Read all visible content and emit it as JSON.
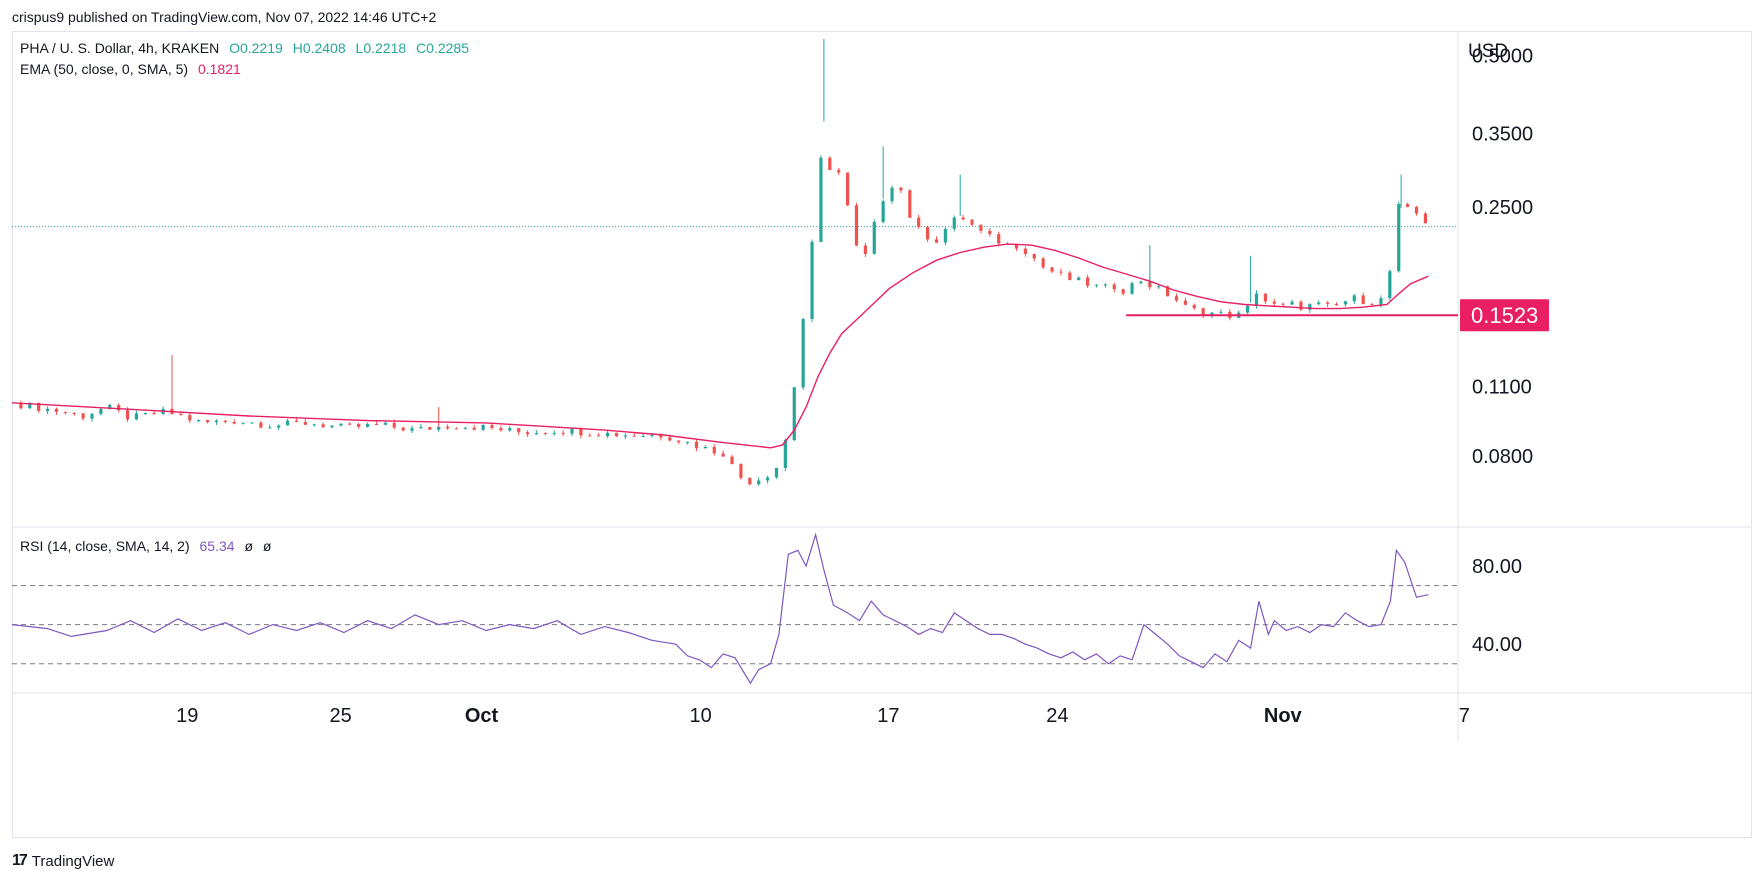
{
  "header": {
    "publisher_line": "crispus9 published on TradingView.com, Nov 07, 2022 14:46 UTC+2"
  },
  "legend": {
    "symbol": "PHA / U. S. Dollar, 4h, KRAKEN",
    "open_label": "O",
    "open": "0.2219",
    "high_label": "H",
    "high": "0.2408",
    "low_label": "L",
    "low": "0.2218",
    "close_label": "C",
    "close": "0.2285",
    "ema_label": "EMA (50, close, 0, SMA, 5)",
    "ema_value": "0.1821",
    "rsi_label": "RSI (14, close, SMA, 14, 2)",
    "rsi_value": "65.34",
    "rsi_extra1": "ø",
    "rsi_extra2": "ø"
  },
  "footer": {
    "brand": "TradingView",
    "logo_glyph": "17"
  },
  "colors": {
    "up": "#26a69a",
    "down": "#ef5350",
    "ema": "#e91e63",
    "support": "#e91e63",
    "rsi": "#7e57c2",
    "price_line": "#26a69a"
  },
  "chart_data": [
    {
      "type": "candlestick",
      "currency_label": "USD",
      "y_scale": "log",
      "ylim": [
        0.058,
        0.56
      ],
      "y_ticks": [
        0.08,
        0.11,
        0.25,
        0.35,
        0.5
      ],
      "y_tick_labels": [
        "0.0800",
        "0.1100",
        "0.2500",
        "0.3500",
        "0.5000"
      ],
      "x_ticks": [
        "19",
        "25",
        "Oct",
        "10",
        "17",
        "24",
        "Nov",
        "7"
      ],
      "current_price_line": 0.2285,
      "support_level": {
        "value": 0.1523,
        "label": "0.1523"
      },
      "price_path": [
        [
          0,
          0.102
        ],
        [
          4,
          0.098
        ],
        [
          6,
          0.096
        ],
        [
          8,
          0.1
        ],
        [
          10,
          0.095
        ],
        [
          13,
          0.098
        ],
        [
          16,
          0.093
        ],
        [
          19,
          0.094
        ],
        [
          22,
          0.092
        ],
        [
          25,
          0.093
        ],
        [
          28,
          0.091
        ],
        [
          31,
          0.092
        ],
        [
          34,
          0.09
        ],
        [
          37,
          0.092
        ],
        [
          40,
          0.091
        ],
        [
          43,
          0.089
        ],
        [
          46,
          0.09
        ],
        [
          49,
          0.089
        ],
        [
          52,
          0.088
        ],
        [
          55,
          0.088
        ],
        [
          57,
          0.085
        ],
        [
          59,
          0.082
        ],
        [
          60,
          0.081
        ],
        [
          61.3,
          0.073
        ],
        [
          62,
          0.071
        ],
        [
          63,
          0.072
        ],
        [
          64,
          0.074
        ],
        [
          65,
          0.078
        ],
        [
          66,
          0.11
        ],
        [
          66.5,
          0.14
        ],
        [
          67,
          0.16
        ],
        [
          67.5,
          0.21
        ],
        [
          68,
          0.25
        ],
        [
          68.5,
          0.37
        ],
        [
          69,
          0.3
        ],
        [
          70,
          0.29
        ],
        [
          71,
          0.21
        ],
        [
          72,
          0.2
        ],
        [
          73,
          0.24
        ],
        [
          74,
          0.28
        ],
        [
          75,
          0.27
        ],
        [
          76,
          0.23
        ],
        [
          77,
          0.22
        ],
        [
          78,
          0.215
        ],
        [
          79,
          0.23
        ],
        [
          80,
          0.24
        ],
        [
          81,
          0.23
        ],
        [
          82,
          0.22
        ],
        [
          83,
          0.215
        ],
        [
          84,
          0.21
        ],
        [
          85,
          0.21
        ],
        [
          86,
          0.2
        ],
        [
          87,
          0.19
        ],
        [
          88,
          0.185
        ],
        [
          89,
          0.18
        ],
        [
          90,
          0.178
        ],
        [
          91,
          0.175
        ],
        [
          92,
          0.172
        ],
        [
          93,
          0.174
        ],
        [
          94,
          0.17
        ],
        [
          95,
          0.18
        ],
        [
          96,
          0.175
        ],
        [
          97,
          0.17
        ],
        [
          98,
          0.165
        ],
        [
          99,
          0.158
        ],
        [
          100,
          0.155
        ],
        [
          101,
          0.154
        ],
        [
          102,
          0.153
        ],
        [
          103,
          0.152
        ],
        [
          104,
          0.153
        ],
        [
          105,
          0.17
        ],
        [
          106,
          0.16
        ],
        [
          107,
          0.158
        ],
        [
          108,
          0.16
        ],
        [
          109,
          0.158
        ],
        [
          110,
          0.16
        ],
        [
          111,
          0.158
        ],
        [
          112,
          0.16
        ],
        [
          113,
          0.165
        ],
        [
          114,
          0.163
        ],
        [
          115,
          0.162
        ],
        [
          116,
          0.165
        ],
        [
          117,
          0.25
        ],
        [
          118,
          0.245
        ],
        [
          119,
          0.24
        ],
        [
          119.5,
          0.2285
        ]
      ],
      "ema_path": [
        [
          0,
          0.102
        ],
        [
          10,
          0.099
        ],
        [
          20,
          0.096
        ],
        [
          30,
          0.094
        ],
        [
          40,
          0.093
        ],
        [
          50,
          0.09
        ],
        [
          55,
          0.088
        ],
        [
          60,
          0.085
        ],
        [
          64,
          0.083
        ],
        [
          65,
          0.084
        ],
        [
          66,
          0.09
        ],
        [
          67,
          0.1
        ],
        [
          68,
          0.115
        ],
        [
          69,
          0.128
        ],
        [
          70,
          0.14
        ],
        [
          72,
          0.155
        ],
        [
          74,
          0.172
        ],
        [
          76,
          0.185
        ],
        [
          78,
          0.196
        ],
        [
          80,
          0.203
        ],
        [
          82,
          0.208
        ],
        [
          84,
          0.211
        ],
        [
          86,
          0.21
        ],
        [
          88,
          0.205
        ],
        [
          90,
          0.198
        ],
        [
          92,
          0.19
        ],
        [
          94,
          0.184
        ],
        [
          96,
          0.178
        ],
        [
          98,
          0.171
        ],
        [
          100,
          0.166
        ],
        [
          102,
          0.162
        ],
        [
          104,
          0.16
        ],
        [
          106,
          0.159
        ],
        [
          108,
          0.158
        ],
        [
          110,
          0.157
        ],
        [
          112,
          0.157
        ],
        [
          114,
          0.158
        ],
        [
          116,
          0.16
        ],
        [
          117,
          0.168
        ],
        [
          118,
          0.176
        ],
        [
          119.5,
          0.1821
        ]
      ],
      "spikes": [
        {
          "t": 13.5,
          "high": 0.127
        },
        {
          "t": 36,
          "high": 0.1
        },
        {
          "t": 68.5,
          "high": 0.54
        },
        {
          "t": 73.5,
          "high": 0.33
        },
        {
          "t": 80,
          "high": 0.29
        },
        {
          "t": 96,
          "high": 0.21
        },
        {
          "t": 104.5,
          "high": 0.2
        },
        {
          "t": 117.2,
          "high": 0.29
        }
      ]
    },
    {
      "type": "line",
      "name": "RSI",
      "ylim": [
        15,
        100
      ],
      "y_ticks": [
        40,
        80
      ],
      "y_tick_labels": [
        "40.00",
        "80.00"
      ],
      "bands": [
        30,
        50,
        70
      ],
      "rsi_path": [
        [
          0,
          50
        ],
        [
          3,
          48
        ],
        [
          5,
          44
        ],
        [
          8,
          47
        ],
        [
          10,
          52
        ],
        [
          12,
          46
        ],
        [
          14,
          53
        ],
        [
          16,
          47
        ],
        [
          18,
          51
        ],
        [
          20,
          45
        ],
        [
          22,
          50
        ],
        [
          24,
          47
        ],
        [
          26,
          51
        ],
        [
          28,
          46
        ],
        [
          30,
          52
        ],
        [
          32,
          48
        ],
        [
          34,
          55
        ],
        [
          36,
          50
        ],
        [
          38,
          52
        ],
        [
          40,
          47
        ],
        [
          42,
          50
        ],
        [
          44,
          48
        ],
        [
          46,
          52
        ],
        [
          48,
          45
        ],
        [
          50,
          49
        ],
        [
          52,
          46
        ],
        [
          54,
          42
        ],
        [
          56,
          40
        ],
        [
          57,
          34
        ],
        [
          58,
          32
        ],
        [
          59,
          28
        ],
        [
          60,
          35
        ],
        [
          61,
          33
        ],
        [
          62.3,
          20
        ],
        [
          63,
          27
        ],
        [
          64,
          30
        ],
        [
          64.7,
          45
        ],
        [
          65.5,
          86
        ],
        [
          66.3,
          88
        ],
        [
          67,
          80
        ],
        [
          67.8,
          96
        ],
        [
          68.5,
          78
        ],
        [
          69.3,
          60
        ],
        [
          70.5,
          56
        ],
        [
          71.5,
          52
        ],
        [
          72.5,
          62
        ],
        [
          73.5,
          55
        ],
        [
          74.5,
          52
        ],
        [
          75.5,
          49
        ],
        [
          76.5,
          45
        ],
        [
          77.5,
          48
        ],
        [
          78.5,
          46
        ],
        [
          79.5,
          56
        ],
        [
          80.5,
          52
        ],
        [
          81.5,
          48
        ],
        [
          82.5,
          45
        ],
        [
          83.5,
          45
        ],
        [
          84.5,
          43
        ],
        [
          85.5,
          40
        ],
        [
          86.5,
          38
        ],
        [
          87.5,
          35
        ],
        [
          88.5,
          33
        ],
        [
          89.5,
          36
        ],
        [
          90.5,
          32
        ],
        [
          91.5,
          35
        ],
        [
          92.5,
          30
        ],
        [
          93.5,
          34
        ],
        [
          94.5,
          32
        ],
        [
          95.5,
          50
        ],
        [
          96.5,
          45
        ],
        [
          97.5,
          40
        ],
        [
          98.5,
          34
        ],
        [
          99.5,
          31
        ],
        [
          100.5,
          28
        ],
        [
          101.5,
          35
        ],
        [
          102.5,
          31
        ],
        [
          103.5,
          42
        ],
        [
          104.5,
          38
        ],
        [
          105.2,
          62
        ],
        [
          106,
          45
        ],
        [
          106.5,
          52
        ],
        [
          107.5,
          47
        ],
        [
          108.5,
          49
        ],
        [
          109.5,
          46
        ],
        [
          110.5,
          50
        ],
        [
          111.5,
          49
        ],
        [
          112.5,
          56
        ],
        [
          113.5,
          52
        ],
        [
          114.5,
          49
        ],
        [
          115.5,
          50
        ],
        [
          116.3,
          62
        ],
        [
          116.8,
          88
        ],
        [
          117.5,
          82
        ],
        [
          118.5,
          64
        ],
        [
          119.5,
          65.34
        ]
      ]
    }
  ]
}
